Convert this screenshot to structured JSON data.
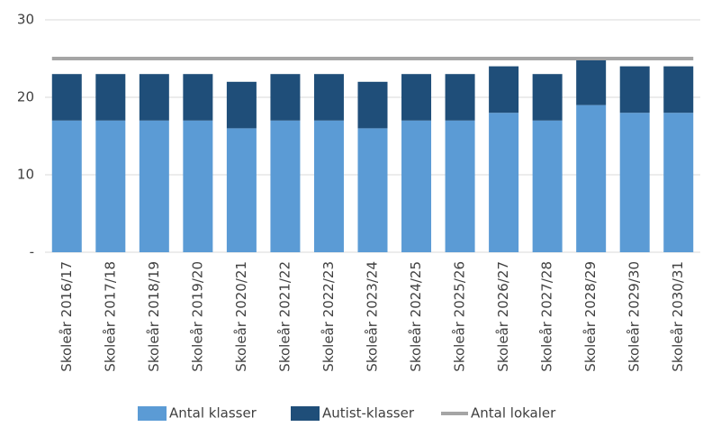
{
  "chart_data": {
    "type": "bar",
    "stacked": true,
    "categories": [
      "Skoleår 2016/17",
      "Skoleår 2017/18",
      "Skoleår 2018/19",
      "Skoleår 2019/20",
      "Skoleår 2020/21",
      "Skoleår 2021/22",
      "Skoleår 2022/23",
      "Skoleår 2023/24",
      "Skoleår 2024/25",
      "Skoleår 2025/26",
      "Skoleår 2026/27",
      "Skoleår 2027/28",
      "Skoleår 2028/29",
      "Skoleår 2029/30",
      "Skoleår 2030/31"
    ],
    "series": [
      {
        "name": "Antal klasser",
        "color": "#5b9bd5",
        "type": "bar",
        "values": [
          17,
          17,
          17,
          17,
          16,
          17,
          17,
          16,
          17,
          17,
          18,
          17,
          19,
          18,
          18
        ]
      },
      {
        "name": "Autist-klasser",
        "color": "#1f4e79",
        "type": "bar",
        "values": [
          6,
          6,
          6,
          6,
          6,
          6,
          6,
          6,
          6,
          6,
          6,
          6,
          6,
          6,
          6
        ]
      },
      {
        "name": "Antal lokaler",
        "color": "#a5a5a5",
        "type": "line",
        "values": [
          25,
          25,
          25,
          25,
          25,
          25,
          25,
          25,
          25,
          25,
          25,
          25,
          25,
          25,
          25
        ]
      }
    ],
    "ylim": [
      0,
      30
    ],
    "yticks": [
      {
        "value": 0,
        "label": "-"
      },
      10,
      20,
      30
    ],
    "grid": true,
    "legend": "bottom"
  }
}
